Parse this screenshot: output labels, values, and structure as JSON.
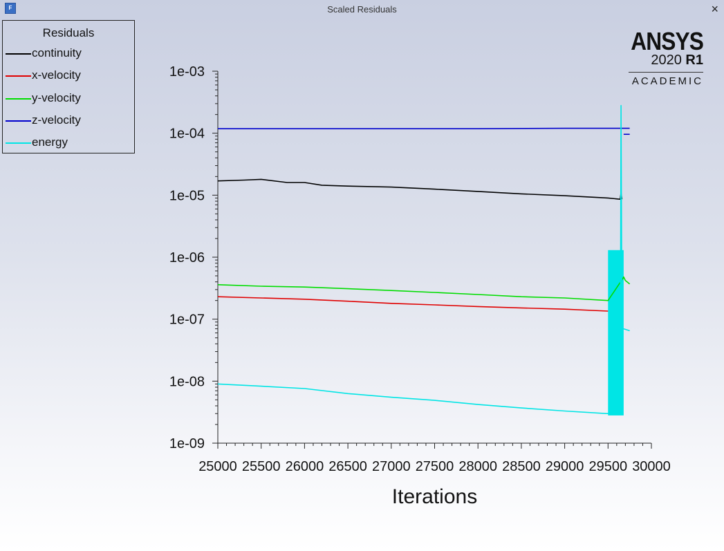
{
  "window": {
    "title": "Scaled Residuals",
    "app_icon_letter": "F",
    "close_symbol": "×"
  },
  "logo": {
    "brand": "ANSYS",
    "version": "2020",
    "release": "R1",
    "edition": "ACADEMIC"
  },
  "legend": {
    "title": "Residuals",
    "items": [
      {
        "label": "continuity",
        "color": "#000000"
      },
      {
        "label": "x-velocity",
        "color": "#e00000"
      },
      {
        "label": "y-velocity",
        "color": "#00dd00"
      },
      {
        "label": "z-velocity",
        "color": "#0000cc"
      },
      {
        "label": "energy",
        "color": "#00e5e5"
      }
    ]
  },
  "chart_data": {
    "type": "line",
    "title": "",
    "xlabel": "Iterations",
    "ylabel": "",
    "xscale": "linear",
    "yscale": "log",
    "xlim": [
      25000,
      30000
    ],
    "ylim": [
      1e-09,
      0.001
    ],
    "x_ticks": [
      25000,
      25500,
      26000,
      26500,
      27000,
      27500,
      28000,
      28500,
      29000,
      29500,
      30000
    ],
    "x_tick_labels": [
      "25000",
      "25500",
      "26000",
      "26500",
      "27000",
      "27500",
      "28000",
      "28500",
      "29000",
      "29500",
      "30000"
    ],
    "y_ticks": [
      1e-09,
      1e-08,
      1e-07,
      1e-06,
      1e-05,
      0.0001,
      0.001
    ],
    "y_tick_labels": [
      "1e-09",
      "1e-08",
      "1e-07",
      "1e-06",
      "1e-05",
      "1e-04",
      "1e-03"
    ],
    "grid": false,
    "legend_position": "top-left",
    "series": [
      {
        "name": "continuity",
        "color": "#000000",
        "x": [
          25000,
          25300,
          25500,
          25800,
          26000,
          26200,
          26500,
          27000,
          27500,
          28000,
          28500,
          29000,
          29500,
          29640,
          29650,
          29660
        ],
        "y": [
          1.7e-05,
          1.75e-05,
          1.8e-05,
          1.6e-05,
          1.6e-05,
          1.45e-05,
          1.4e-05,
          1.35e-05,
          1.25e-05,
          1.15e-05,
          1.05e-05,
          9.8e-06,
          9e-06,
          8.6e-06,
          1.1e-05,
          8.6e-06
        ]
      },
      {
        "name": "x-velocity",
        "color": "#e00000",
        "x": [
          25000,
          25500,
          26000,
          26500,
          27000,
          27500,
          28000,
          28500,
          29000,
          29500
        ],
        "y": [
          2.3e-07,
          2.2e-07,
          2.1e-07,
          1.95e-07,
          1.8e-07,
          1.7e-07,
          1.6e-07,
          1.52e-07,
          1.45e-07,
          1.35e-07
        ]
      },
      {
        "name": "y-velocity",
        "color": "#00dd00",
        "x": [
          25000,
          25500,
          26000,
          26500,
          27000,
          27500,
          28000,
          28500,
          29000,
          29500,
          29670,
          29680,
          29700,
          29720,
          29750
        ],
        "y": [
          3.6e-07,
          3.4e-07,
          3.3e-07,
          3.1e-07,
          2.9e-07,
          2.7e-07,
          2.5e-07,
          2.3e-07,
          2.2e-07,
          2e-07,
          4.5e-07,
          4.8e-07,
          4.2e-07,
          4e-07,
          3.7e-07
        ]
      },
      {
        "name": "z-velocity",
        "color": "#0000cc",
        "x": [
          25000,
          26000,
          27000,
          28000,
          29000,
          29650,
          29750
        ],
        "y": [
          0.000118,
          0.000118,
          0.000118,
          0.000118,
          0.00012,
          0.00012,
          0.00012
        ]
      },
      {
        "name": "energy",
        "color": "#00e5e5",
        "x": [
          25000,
          25500,
          26000,
          26500,
          27000,
          27500,
          28000,
          28500,
          29000,
          29480,
          29500,
          29640,
          29650,
          29660,
          29680,
          29750
        ],
        "y": [
          9e-09,
          8.3e-09,
          7.6e-09,
          6.3e-09,
          5.5e-09,
          4.9e-09,
          4.2e-09,
          3.7e-09,
          3.3e-09,
          3e-09,
          3e-09,
          3e-09,
          0.00028,
          7e-08,
          7e-08,
          6.5e-08
        ]
      }
    ],
    "extra_marks": {
      "energy_band": {
        "x": [
          29500,
          29680
        ],
        "y": [
          2.8e-09,
          1.3e-06
        ],
        "color": "#00e5e5"
      },
      "z_velocity_step": {
        "x": [
          29680,
          29750
        ],
        "y": 9.6e-05,
        "color": "#0000cc"
      }
    }
  }
}
